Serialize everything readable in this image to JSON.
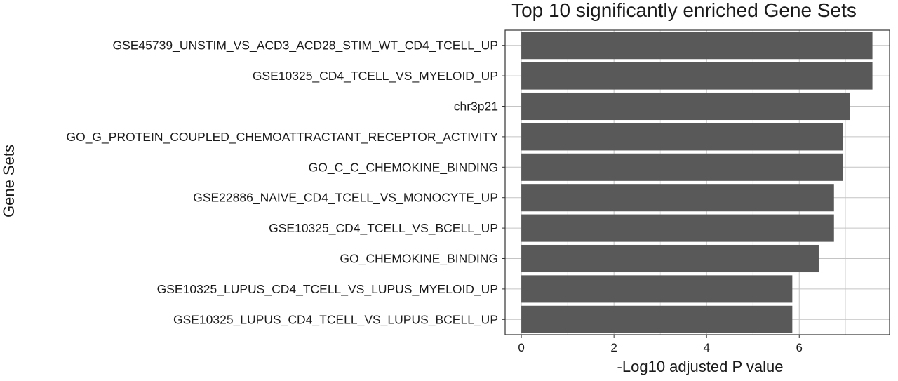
{
  "chart_data": {
    "type": "bar",
    "orientation": "horizontal",
    "title": "Top 10 significantly enriched Gene Sets",
    "xlabel": "-Log10 adjusted P value",
    "ylabel": "Gene Sets",
    "xlim": [
      -0.35,
      7.95
    ],
    "xticks": [
      0,
      2,
      4,
      6
    ],
    "grid": true,
    "bar_color": "#595959",
    "categories": [
      "GSE45739_UNSTIM_VS_ACD3_ACD28_STIM_WT_CD4_TCELL_UP",
      "GSE10325_CD4_TCELL_VS_MYELOID_UP",
      "chr3p21",
      "GO_G_PROTEIN_COUPLED_CHEMOATTRACTANT_RECEPTOR_ACTIVITY",
      "GO_C_C_CHEMOKINE_BINDING",
      "GSE22886_NAIVE_CD4_TCELL_VS_MONOCYTE_UP",
      "GSE10325_CD4_TCELL_VS_BCELL_UP",
      "GO_CHEMOKINE_BINDING",
      "GSE10325_LUPUS_CD4_TCELL_VS_LUPUS_MYELOID_UP",
      "GSE10325_LUPUS_CD4_TCELL_VS_LUPUS_BCELL_UP"
    ],
    "values": [
      7.58,
      7.58,
      7.09,
      6.94,
      6.94,
      6.75,
      6.75,
      6.42,
      5.85,
      5.85
    ]
  }
}
